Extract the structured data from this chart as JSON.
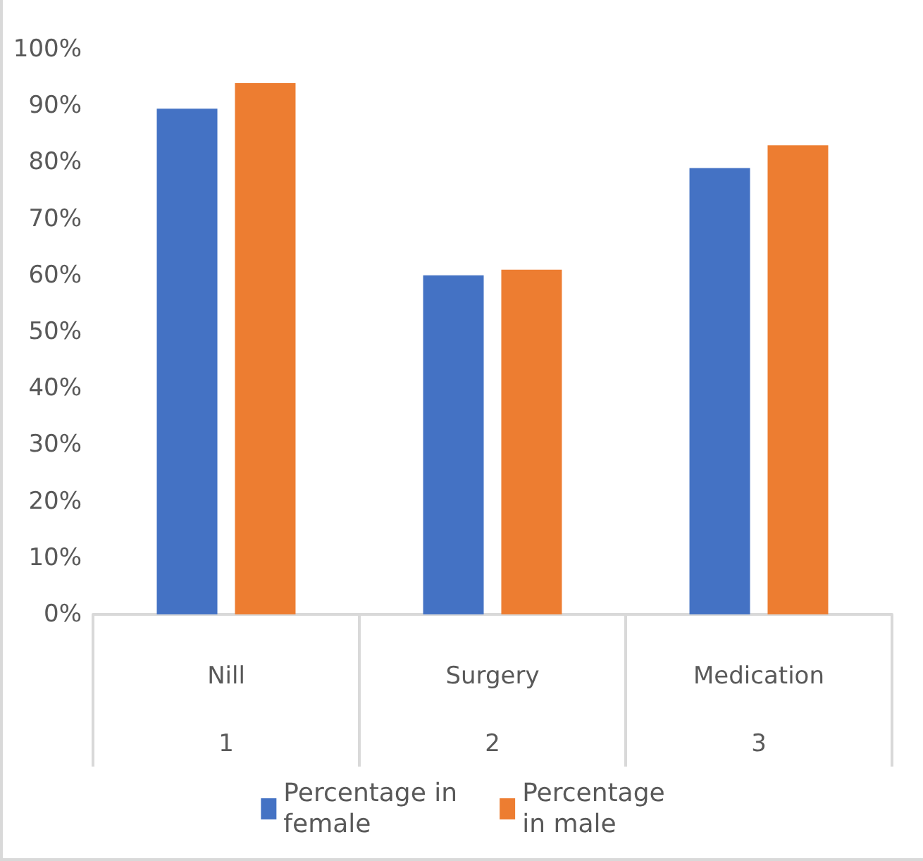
{
  "chart_data": {
    "type": "bar",
    "categories": [
      "Nill\n1",
      "Surgery\n2",
      "Medication\n3"
    ],
    "series": [
      {
        "name": "Percentage in\nfemale",
        "color": "#4472c4",
        "values": [
          89.5,
          60,
          79
        ]
      },
      {
        "name": "Percentage\nin male",
        "color": "#ed7d31",
        "values": [
          94,
          61,
          83
        ]
      }
    ],
    "ylim": [
      0,
      100
    ],
    "yticks": [
      {
        "value": 0,
        "label": "0%"
      },
      {
        "value": 10,
        "label": "10%"
      },
      {
        "value": 20,
        "label": "20%"
      },
      {
        "value": 30,
        "label": "30%"
      },
      {
        "value": 40,
        "label": "40%"
      },
      {
        "value": 50,
        "label": "50%"
      },
      {
        "value": 60,
        "label": "60%"
      },
      {
        "value": 70,
        "label": "70%"
      },
      {
        "value": 80,
        "label": "80%"
      },
      {
        "value": 90,
        "label": "90%"
      },
      {
        "value": 100,
        "label": "100%"
      }
    ],
    "grid": false,
    "legend": "bottom"
  }
}
